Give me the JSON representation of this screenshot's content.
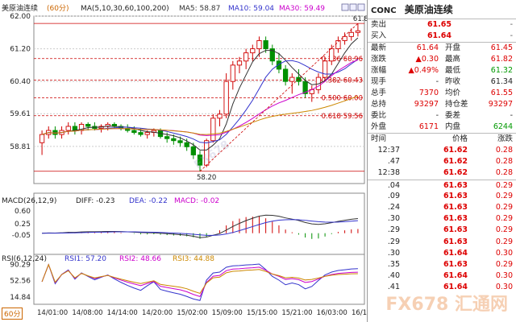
{
  "header": {
    "symbol": "美原油连续",
    "period": "(60分)",
    "ma_label": "MA(5,10,30,60,100,200)",
    "ma5": "MA5: 58.87",
    "ma10": "MA10: 59.04",
    "ma30": "MA30: 59.49"
  },
  "colors": {
    "up": "#d00000",
    "down": "#009000",
    "ma5": "#333333",
    "ma10": "#3333cc",
    "ma30": "#cc00cc",
    "ma60": "#cc8800",
    "fib": "#cc0000"
  },
  "price_axis": {
    "labels": [
      "62.00",
      "61.20",
      "60.40",
      "59.61",
      "58.81"
    ],
    "max": 62.0,
    "min": 57.9
  },
  "fib_levels": [
    {
      "label": "0.236 60.96",
      "value": 60.96
    },
    {
      "label": "0.382 60.43",
      "value": 60.43
    },
    {
      "label": "0.500 60.00",
      "value": 60.0
    },
    {
      "label": "0.618 59.56",
      "value": 59.56
    }
  ],
  "marks": {
    "high": "61.82",
    "low": "58.20",
    "high_val": 61.82,
    "low_val": 58.2
  },
  "macd": {
    "label": "MACD(26,12,9)",
    "diff": "DIFF: -0.23",
    "dea": "DEA: -0.22",
    "macd": "MACD: -0.02",
    "axis": [
      "0.60",
      "0.25",
      "-0.05"
    ]
  },
  "rsi": {
    "label": "RSI(6,12,24)",
    "rsi1": "RSI1: 57.20",
    "rsi2": "RSI2: 48.66",
    "rsi3": "RSI3: 44.88",
    "axis": [
      "90.29",
      "52.56",
      "14.84"
    ]
  },
  "time_axis": [
    "14/01:00",
    "14/08:00",
    "14/14:00",
    "14/20:00",
    "15/02:00",
    "15/09:00",
    "15/15:00",
    "15/21:00",
    "16/03:00",
    "16/10:00"
  ],
  "period_button": "60分",
  "watermarks": [
    "FX678",
    "汇通网"
  ],
  "quote": {
    "code": "CONC",
    "name": "美原油连续",
    "sell": {
      "label": "卖出",
      "price": "61.65",
      "size": "-"
    },
    "buy": {
      "label": "买入",
      "price": "61.64",
      "size": "-"
    },
    "stats": [
      {
        "l1": "最新",
        "v1": "61.64",
        "c1": "red",
        "l2": "开盘",
        "v2": "61.45",
        "c2": "red"
      },
      {
        "l1": "涨跌",
        "v1": "▲0.30",
        "c1": "red",
        "l2": "最高",
        "v2": "61.82",
        "c2": "red"
      },
      {
        "l1": "涨幅",
        "v1": "▲0.49%",
        "c1": "red",
        "l2": "最低",
        "v2": "61.32",
        "c2": "grn"
      },
      {
        "l1": "现手",
        "v1": "-",
        "c1": "blk",
        "l2": "昨收",
        "v2": "61.34",
        "c2": "blk"
      },
      {
        "l1": "总手",
        "v1": "7370",
        "c1": "red",
        "l2": "均价",
        "v2": "61.55",
        "c2": "red"
      },
      {
        "l1": "总持",
        "v1": "93297",
        "c1": "red",
        "l2": "持仓差",
        "v2": "93297",
        "c2": "red"
      },
      {
        "l1": "委比",
        "v1": "-",
        "c1": "blk",
        "l2": "委差",
        "v2": "-",
        "c2": "blk"
      },
      {
        "l1": "外盘",
        "v1": "6171",
        "c1": "red",
        "l2": "内盘",
        "v2": "6244",
        "c2": "grn"
      }
    ],
    "ticks_header": {
      "time": "时间",
      "price": "价格",
      "change": "涨跌"
    },
    "ticks": [
      {
        "t": "12:37",
        "p": "61.62",
        "c": "0.28"
      },
      {
        "t": ".47",
        "p": "61.62",
        "c": "0.28"
      },
      {
        "t": "12:38",
        "p": "61.62",
        "c": "0.28"
      },
      {
        "t": ".04",
        "p": "61.63",
        "c": "0.29"
      },
      {
        "t": ".09",
        "p": "61.63",
        "c": "0.29"
      },
      {
        "t": ".24",
        "p": "61.63",
        "c": "0.29"
      },
      {
        "t": ".30",
        "p": "61.63",
        "c": "0.29"
      },
      {
        "t": ".29",
        "p": "61.63",
        "c": "0.29"
      },
      {
        "t": ".29",
        "p": "61.63",
        "c": "0.29"
      },
      {
        "t": ".30",
        "p": "61.64",
        "c": "0.30"
      },
      {
        "t": ".35",
        "p": "61.63",
        "c": "0.29"
      },
      {
        "t": ".40",
        "p": "61.64",
        "c": "0.30"
      },
      {
        "t": ".41",
        "p": "61.64",
        "c": "0.30"
      }
    ]
  },
  "chart_data": {
    "type": "candlestick",
    "title": "美原油连续 (60分)",
    "ylim": [
      57.9,
      62.0
    ],
    "candles": [
      [
        58.9,
        59.2,
        58.6,
        59.1
      ],
      [
        59.1,
        59.3,
        59.0,
        59.2
      ],
      [
        59.2,
        59.3,
        59.0,
        59.1
      ],
      [
        59.1,
        59.3,
        59.0,
        59.2
      ],
      [
        59.2,
        59.4,
        59.1,
        59.3
      ],
      [
        59.3,
        59.4,
        59.1,
        59.2
      ],
      [
        59.2,
        59.4,
        59.1,
        59.35
      ],
      [
        59.35,
        59.4,
        59.2,
        59.3
      ],
      [
        59.3,
        59.4,
        59.2,
        59.25
      ],
      [
        59.25,
        59.35,
        59.15,
        59.3
      ],
      [
        59.3,
        59.4,
        59.2,
        59.35
      ],
      [
        59.35,
        59.4,
        59.25,
        59.3
      ],
      [
        59.3,
        59.35,
        59.2,
        59.25
      ],
      [
        59.25,
        59.35,
        59.15,
        59.2
      ],
      [
        59.2,
        59.3,
        59.1,
        59.15
      ],
      [
        59.15,
        59.25,
        59.05,
        59.1
      ],
      [
        59.1,
        59.2,
        59.0,
        59.15
      ],
      [
        59.15,
        59.25,
        59.05,
        59.2
      ],
      [
        59.2,
        59.25,
        59.0,
        59.05
      ],
      [
        59.05,
        59.15,
        58.9,
        59.0
      ],
      [
        59.0,
        59.1,
        58.85,
        58.95
      ],
      [
        58.95,
        59.05,
        58.8,
        58.9
      ],
      [
        58.9,
        59.0,
        58.7,
        58.8
      ],
      [
        58.8,
        58.9,
        58.5,
        58.6
      ],
      [
        58.6,
        58.7,
        58.2,
        58.35
      ],
      [
        58.35,
        59.0,
        58.3,
        58.95
      ],
      [
        58.95,
        59.6,
        58.9,
        59.5
      ],
      [
        59.5,
        59.7,
        59.3,
        59.6
      ],
      [
        59.6,
        60.6,
        59.5,
        60.4
      ],
      [
        60.4,
        60.9,
        60.2,
        60.8
      ],
      [
        60.8,
        61.0,
        60.6,
        60.9
      ],
      [
        60.9,
        61.2,
        60.7,
        61.1
      ],
      [
        61.1,
        61.3,
        60.9,
        61.2
      ],
      [
        61.2,
        61.5,
        61.0,
        61.4
      ],
      [
        61.4,
        61.5,
        61.1,
        61.2
      ],
      [
        61.2,
        61.3,
        60.8,
        60.9
      ],
      [
        60.9,
        61.1,
        60.6,
        60.7
      ],
      [
        60.7,
        60.8,
        60.3,
        60.4
      ],
      [
        60.4,
        60.6,
        60.1,
        60.5
      ],
      [
        60.5,
        60.7,
        60.3,
        60.4
      ],
      [
        60.4,
        60.5,
        60.0,
        60.1
      ],
      [
        60.1,
        60.3,
        59.9,
        60.2
      ],
      [
        60.2,
        60.6,
        60.1,
        60.5
      ],
      [
        60.5,
        61.0,
        60.4,
        60.9
      ],
      [
        60.9,
        61.3,
        60.8,
        61.2
      ],
      [
        61.2,
        61.5,
        61.1,
        61.4
      ],
      [
        61.4,
        61.6,
        61.3,
        61.5
      ],
      [
        61.5,
        61.7,
        61.4,
        61.6
      ],
      [
        61.6,
        61.82,
        61.5,
        61.64
      ]
    ]
  }
}
